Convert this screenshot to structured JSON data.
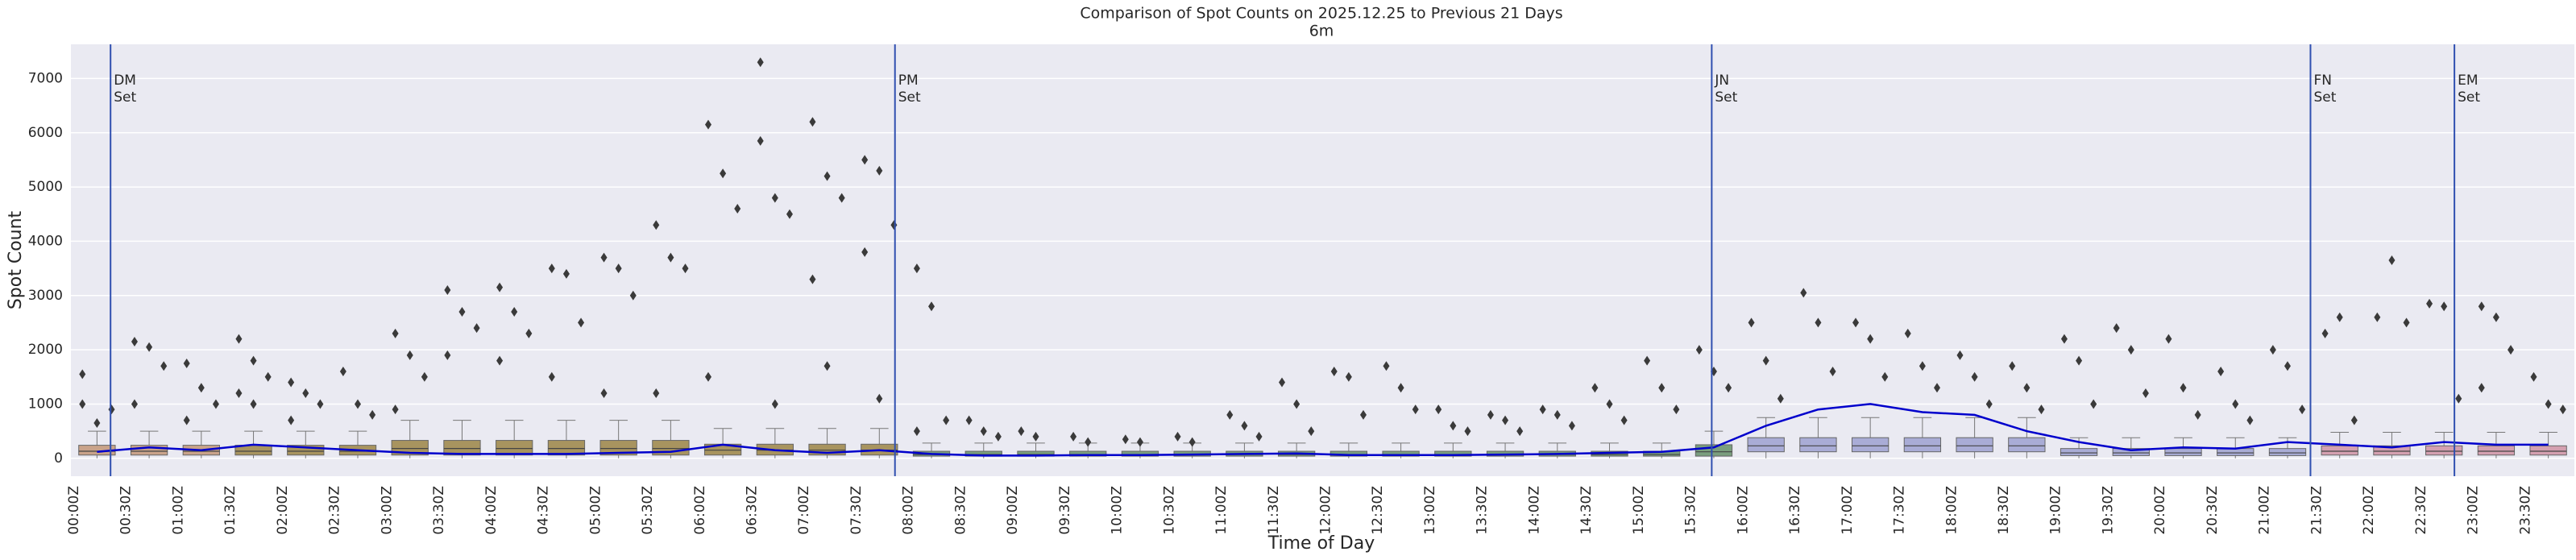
{
  "chart_data": {
    "type": "box",
    "title": "Comparison of Spot Counts on 2025.12.25 to Previous 21 Days",
    "subtitle": "6m",
    "x_label": "Time of Day",
    "y_label": "Spot Count",
    "categories": [
      "00:00Z",
      "00:30Z",
      "01:00Z",
      "01:30Z",
      "02:00Z",
      "02:30Z",
      "03:00Z",
      "03:30Z",
      "04:00Z",
      "04:30Z",
      "05:00Z",
      "05:30Z",
      "06:00Z",
      "06:30Z",
      "07:00Z",
      "07:30Z",
      "08:00Z",
      "08:30Z",
      "09:00Z",
      "09:30Z",
      "10:00Z",
      "10:30Z",
      "11:00Z",
      "11:30Z",
      "12:00Z",
      "12:30Z",
      "13:00Z",
      "13:30Z",
      "14:00Z",
      "14:30Z",
      "15:00Z",
      "15:30Z",
      "16:00Z",
      "16:30Z",
      "17:00Z",
      "17:30Z",
      "18:00Z",
      "18:30Z",
      "19:00Z",
      "19:30Z",
      "20:00Z",
      "20:30Z",
      "21:00Z",
      "21:30Z",
      "22:00Z",
      "22:30Z",
      "23:00Z",
      "23:30Z"
    ],
    "whisker_low": [
      0,
      0,
      0,
      0,
      0,
      0,
      0,
      0,
      0,
      0,
      0,
      0,
      0,
      0,
      0,
      0,
      0,
      0,
      0,
      0,
      0,
      0,
      0,
      0,
      0,
      0,
      0,
      0,
      0,
      0,
      0,
      0,
      0,
      0,
      0,
      0,
      0,
      0,
      0,
      0,
      0,
      0,
      0,
      0,
      0,
      0,
      0,
      0
    ],
    "q1": [
      60,
      60,
      60,
      60,
      60,
      60,
      60,
      60,
      60,
      60,
      60,
      60,
      60,
      60,
      60,
      60,
      40,
      40,
      40,
      40,
      40,
      40,
      40,
      40,
      40,
      40,
      40,
      40,
      40,
      40,
      40,
      40,
      120,
      120,
      120,
      120,
      120,
      120,
      50,
      50,
      50,
      50,
      50,
      60,
      60,
      60,
      60,
      60
    ],
    "median": [
      130,
      130,
      130,
      130,
      130,
      130,
      180,
      180,
      180,
      180,
      180,
      180,
      150,
      150,
      150,
      150,
      70,
      70,
      70,
      70,
      70,
      70,
      70,
      70,
      70,
      70,
      70,
      70,
      70,
      70,
      70,
      120,
      230,
      230,
      230,
      230,
      230,
      230,
      100,
      100,
      100,
      100,
      100,
      130,
      130,
      130,
      130,
      130
    ],
    "q3": [
      240,
      240,
      240,
      240,
      240,
      240,
      330,
      330,
      330,
      330,
      330,
      330,
      260,
      260,
      260,
      260,
      130,
      130,
      130,
      130,
      130,
      130,
      130,
      130,
      130,
      130,
      130,
      130,
      130,
      130,
      130,
      250,
      380,
      380,
      380,
      380,
      380,
      380,
      180,
      180,
      180,
      180,
      180,
      230,
      230,
      230,
      230,
      230
    ],
    "whisker_high": [
      500,
      500,
      500,
      500,
      500,
      500,
      700,
      700,
      700,
      700,
      700,
      700,
      550,
      550,
      550,
      550,
      280,
      280,
      280,
      280,
      280,
      280,
      280,
      280,
      280,
      280,
      280,
      280,
      280,
      280,
      280,
      500,
      750,
      750,
      750,
      750,
      750,
      750,
      380,
      380,
      380,
      380,
      380,
      480,
      480,
      480,
      480,
      480
    ],
    "outliers": [
      [
        1000,
        650,
        900,
        1550
      ],
      [
        2150,
        2050,
        1700,
        1000
      ],
      [
        1750,
        1300,
        1000,
        700
      ],
      [
        2200,
        1800,
        1500,
        1200,
        1000
      ],
      [
        1400,
        1200,
        1000,
        700
      ],
      [
        1600,
        1000,
        800
      ],
      [
        2300,
        1900,
        1500,
        900
      ],
      [
        3100,
        2700,
        2400,
        1900
      ],
      [
        3150,
        2700,
        2300,
        1800
      ],
      [
        3500,
        3400,
        2500,
        1500
      ],
      [
        3700,
        3500,
        3000,
        1200
      ],
      [
        4300,
        3700,
        3500,
        1200
      ],
      [
        6150,
        5250,
        4600,
        1500
      ],
      [
        5850,
        4800,
        4500,
        7300,
        1000
      ],
      [
        6200,
        5200,
        4800,
        3300,
        1700
      ],
      [
        5500,
        5300,
        4300,
        3800,
        1100
      ],
      [
        3500,
        2800,
        700,
        500
      ],
      [
        700,
        500,
        400
      ],
      [
        500,
        400
      ],
      [
        400,
        300
      ],
      [
        350,
        300
      ],
      [
        400,
        300
      ],
      [
        800,
        600,
        400
      ],
      [
        1400,
        1000,
        500
      ],
      [
        1600,
        1500,
        800
      ],
      [
        1700,
        1300,
        900
      ],
      [
        900,
        600,
        500
      ],
      [
        800,
        700,
        500
      ],
      [
        900,
        800,
        600
      ],
      [
        1300,
        1000,
        700
      ],
      [
        1800,
        1300,
        900
      ],
      [
        2000,
        1600,
        1300
      ],
      [
        2500,
        1800,
        1100
      ],
      [
        3050,
        2500,
        1600
      ],
      [
        2500,
        2200,
        1500
      ],
      [
        2300,
        1700,
        1300
      ],
      [
        1900,
        1500,
        1000
      ],
      [
        1700,
        1300,
        900
      ],
      [
        2200,
        1800,
        1000
      ],
      [
        2400,
        2000,
        1200
      ],
      [
        2200,
        1300,
        800
      ],
      [
        1600,
        1000,
        700
      ],
      [
        2000,
        1700,
        900
      ],
      [
        2300,
        2600,
        700
      ],
      [
        2600,
        3650,
        2500
      ],
      [
        2850,
        2800,
        1100
      ],
      [
        2800,
        2600,
        2000,
        1300
      ],
      [
        1500,
        1000,
        900
      ]
    ],
    "box_colors": [
      "#c9a38a",
      "#c9a38a",
      "#c9a38a",
      "#a8945f",
      "#a8945f",
      "#a8945f",
      "#a8945f",
      "#a8945f",
      "#a8945f",
      "#a8945f",
      "#a8945f",
      "#a8945f",
      "#a8945f",
      "#a8945f",
      "#a8945f",
      "#a8945f",
      "#7a9e7e",
      "#7a9e7e",
      "#7a9e7e",
      "#7a9e7e",
      "#7a9e7e",
      "#7a9e7e",
      "#7a9e7e",
      "#7a9e7e",
      "#7a9e7e",
      "#7a9e7e",
      "#7a9e7e",
      "#7a9e7e",
      "#7a9e7e",
      "#7a9e7e",
      "#7a9e7e",
      "#7a9e7e",
      "#a9acd6",
      "#a9acd6",
      "#a9acd6",
      "#a9acd6",
      "#a9acd6",
      "#a9acd6",
      "#a9acd6",
      "#a9acd6",
      "#a9acd6",
      "#a9acd6",
      "#a9acd6",
      "#d4a0b0",
      "#d4a0b0",
      "#d4a0b0",
      "#d4a0b0",
      "#d4a0b0"
    ],
    "line": {
      "color": "#0000cc",
      "values": [
        120,
        200,
        150,
        250,
        200,
        150,
        100,
        80,
        80,
        80,
        100,
        120,
        250,
        150,
        100,
        150,
        80,
        50,
        50,
        60,
        60,
        70,
        80,
        90,
        60,
        60,
        60,
        70,
        80,
        100,
        120,
        200,
        600,
        900,
        1000,
        850,
        800,
        500,
        300,
        150,
        200,
        180,
        300,
        250,
        200,
        300,
        250,
        250
      ]
    },
    "annotations": [
      {
        "x": 0.38,
        "lines": [
          "DM",
          "Set"
        ]
      },
      {
        "x": 7.9,
        "lines": [
          "PM",
          "Set"
        ]
      },
      {
        "x": 15.73,
        "lines": [
          "JN",
          "Set"
        ]
      },
      {
        "x": 21.47,
        "lines": [
          "FN",
          "Set"
        ]
      },
      {
        "x": 22.85,
        "lines": [
          "EM",
          "Set"
        ]
      }
    ],
    "annotation_color": "#3050b0",
    "ylim": [
      -330,
      7630
    ],
    "yticks": [
      0,
      1000,
      2000,
      3000,
      4000,
      5000,
      6000,
      7000
    ],
    "grid": true
  }
}
